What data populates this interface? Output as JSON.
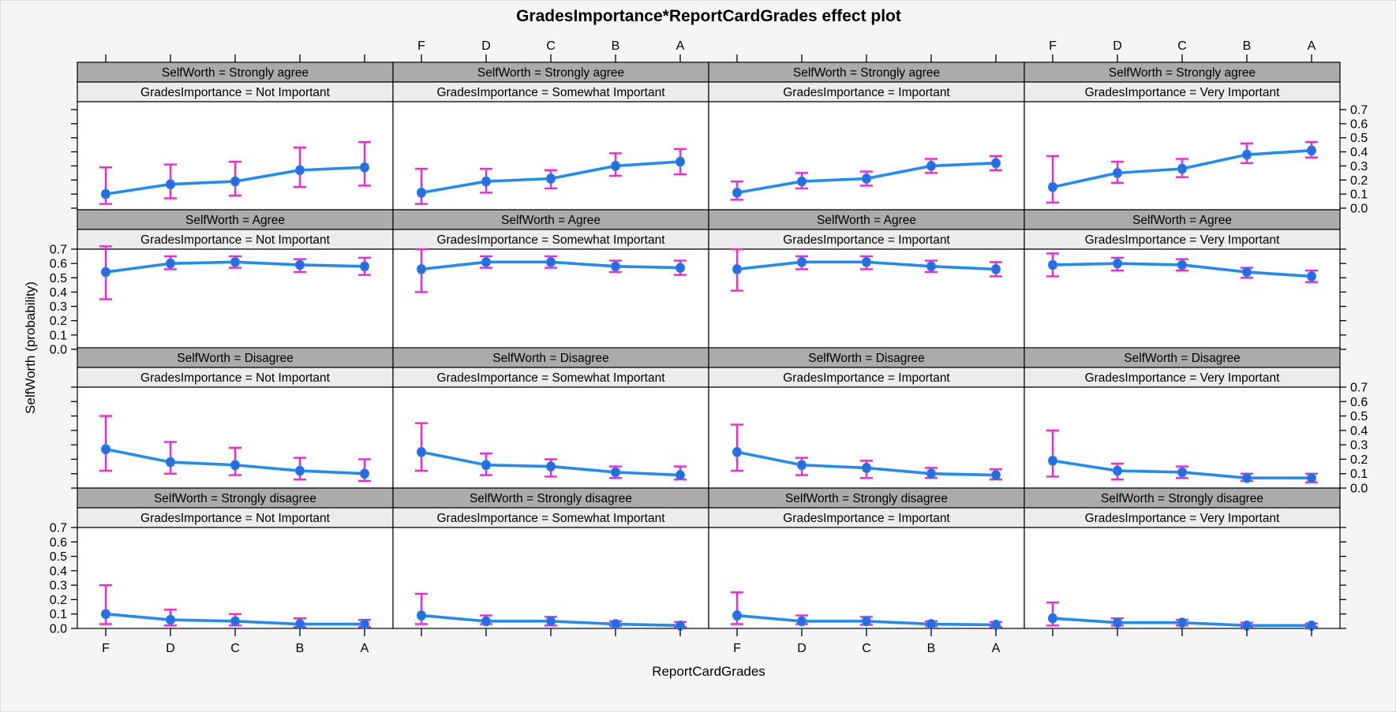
{
  "title": "GradesImportance*ReportCardGrades effect plot",
  "xlabel": "ReportCardGrades",
  "ylabel": "SelfWorth (probability)",
  "colors": {
    "background": "#f5f5f6",
    "panel_bg": "#ffffff",
    "strip_top_bg": "#ababab",
    "strip_bottom_bg": "#ececec",
    "border": "#000000",
    "line": "#1e8bf7",
    "point": "#2a6cdf",
    "error_bar": "#ff22d5",
    "text": "#000000"
  },
  "chart_data": {
    "type": "line",
    "x_categories": [
      "F",
      "D",
      "C",
      "B",
      "A"
    ],
    "y_ticks": [
      "0.0",
      "0.1",
      "0.2",
      "0.3",
      "0.4",
      "0.5",
      "0.6",
      "0.7"
    ],
    "ylim": [
      0,
      0.7
    ],
    "grid": false,
    "legend": "none",
    "columns": [
      {
        "label": "Not Important",
        "strip": "GradesImportance = Not Important"
      },
      {
        "label": "Somewhat Important",
        "strip": "GradesImportance = Somewhat Important"
      },
      {
        "label": "Important",
        "strip": "GradesImportance = Important"
      },
      {
        "label": "Very Important",
        "strip": "GradesImportance = Very Important"
      }
    ],
    "rows": [
      {
        "label": "Strongly agree",
        "strip": "SelfWorth = Strongly agree",
        "panels": [
          {
            "column": "Not Important",
            "values": [
              0.1,
              0.17,
              0.19,
              0.27,
              0.29
            ],
            "ci_low": [
              0.03,
              0.07,
              0.09,
              0.15,
              0.16
            ],
            "ci_high": [
              0.29,
              0.31,
              0.33,
              0.43,
              0.47
            ]
          },
          {
            "column": "Somewhat Important",
            "values": [
              0.11,
              0.19,
              0.21,
              0.3,
              0.33
            ],
            "ci_low": [
              0.03,
              0.11,
              0.14,
              0.23,
              0.24
            ],
            "ci_high": [
              0.28,
              0.28,
              0.27,
              0.39,
              0.42
            ]
          },
          {
            "column": "Important",
            "values": [
              0.11,
              0.19,
              0.21,
              0.3,
              0.32
            ],
            "ci_low": [
              0.06,
              0.14,
              0.16,
              0.25,
              0.27
            ],
            "ci_high": [
              0.19,
              0.25,
              0.26,
              0.35,
              0.37
            ]
          },
          {
            "column": "Very Important",
            "values": [
              0.15,
              0.25,
              0.28,
              0.38,
              0.41
            ],
            "ci_low": [
              0.04,
              0.18,
              0.22,
              0.32,
              0.36
            ],
            "ci_high": [
              0.37,
              0.33,
              0.35,
              0.46,
              0.47
            ]
          }
        ]
      },
      {
        "label": "Agree",
        "strip": "SelfWorth = Agree",
        "panels": [
          {
            "column": "Not Important",
            "values": [
              0.54,
              0.6,
              0.61,
              0.59,
              0.58
            ],
            "ci_low": [
              0.35,
              0.56,
              0.57,
              0.54,
              0.52
            ],
            "ci_high": [
              0.72,
              0.65,
              0.65,
              0.63,
              0.64
            ]
          },
          {
            "column": "Somewhat Important",
            "values": [
              0.56,
              0.61,
              0.61,
              0.58,
              0.57
            ],
            "ci_low": [
              0.4,
              0.57,
              0.57,
              0.54,
              0.52
            ],
            "ci_high": [
              0.7,
              0.65,
              0.65,
              0.62,
              0.62
            ]
          },
          {
            "column": "Important",
            "values": [
              0.56,
              0.61,
              0.61,
              0.58,
              0.56
            ],
            "ci_low": [
              0.41,
              0.56,
              0.56,
              0.54,
              0.51
            ],
            "ci_high": [
              0.7,
              0.65,
              0.65,
              0.62,
              0.61
            ]
          },
          {
            "column": "Very Important",
            "values": [
              0.59,
              0.6,
              0.59,
              0.54,
              0.51
            ],
            "ci_low": [
              0.51,
              0.55,
              0.55,
              0.5,
              0.47
            ],
            "ci_high": [
              0.67,
              0.64,
              0.63,
              0.57,
              0.55
            ]
          }
        ]
      },
      {
        "label": "Disagree",
        "strip": "SelfWorth = Disagree",
        "panels": [
          {
            "column": "Not Important",
            "values": [
              0.27,
              0.18,
              0.16,
              0.12,
              0.1
            ],
            "ci_low": [
              0.12,
              0.1,
              0.09,
              0.06,
              0.05
            ],
            "ci_high": [
              0.5,
              0.32,
              0.28,
              0.21,
              0.2
            ]
          },
          {
            "column": "Somewhat Important",
            "values": [
              0.25,
              0.16,
              0.15,
              0.11,
              0.09
            ],
            "ci_low": [
              0.12,
              0.09,
              0.08,
              0.07,
              0.06
            ],
            "ci_high": [
              0.45,
              0.24,
              0.2,
              0.15,
              0.15
            ]
          },
          {
            "column": "Important",
            "values": [
              0.25,
              0.16,
              0.14,
              0.1,
              0.09
            ],
            "ci_low": [
              0.12,
              0.09,
              0.07,
              0.07,
              0.06
            ],
            "ci_high": [
              0.44,
              0.21,
              0.19,
              0.14,
              0.13
            ]
          },
          {
            "column": "Very Important",
            "values": [
              0.19,
              0.12,
              0.11,
              0.07,
              0.07
            ],
            "ci_low": [
              0.08,
              0.06,
              0.07,
              0.05,
              0.04
            ],
            "ci_high": [
              0.4,
              0.17,
              0.15,
              0.1,
              0.1
            ]
          }
        ]
      },
      {
        "label": "Strongly disagree",
        "strip": "SelfWorth = Strongly disagree",
        "panels": [
          {
            "column": "Not Important",
            "values": [
              0.1,
              0.06,
              0.05,
              0.03,
              0.03
            ],
            "ci_low": [
              0.03,
              0.02,
              0.02,
              0.01,
              0.01
            ],
            "ci_high": [
              0.3,
              0.13,
              0.1,
              0.07,
              0.06
            ]
          },
          {
            "column": "Somewhat Important",
            "values": [
              0.09,
              0.05,
              0.05,
              0.03,
              0.02
            ],
            "ci_low": [
              0.03,
              0.03,
              0.02,
              0.015,
              0.01
            ],
            "ci_high": [
              0.24,
              0.09,
              0.08,
              0.05,
              0.045
            ]
          },
          {
            "column": "Important",
            "values": [
              0.09,
              0.05,
              0.05,
              0.03,
              0.025
            ],
            "ci_low": [
              0.03,
              0.03,
              0.025,
              0.015,
              0.01
            ],
            "ci_high": [
              0.25,
              0.09,
              0.08,
              0.05,
              0.045
            ]
          },
          {
            "column": "Very Important",
            "values": [
              0.07,
              0.04,
              0.04,
              0.02,
              0.02
            ],
            "ci_low": [
              0.02,
              0.02,
              0.02,
              0.01,
              0.01
            ],
            "ci_high": [
              0.18,
              0.07,
              0.06,
              0.04,
              0.035
            ]
          }
        ]
      }
    ]
  }
}
